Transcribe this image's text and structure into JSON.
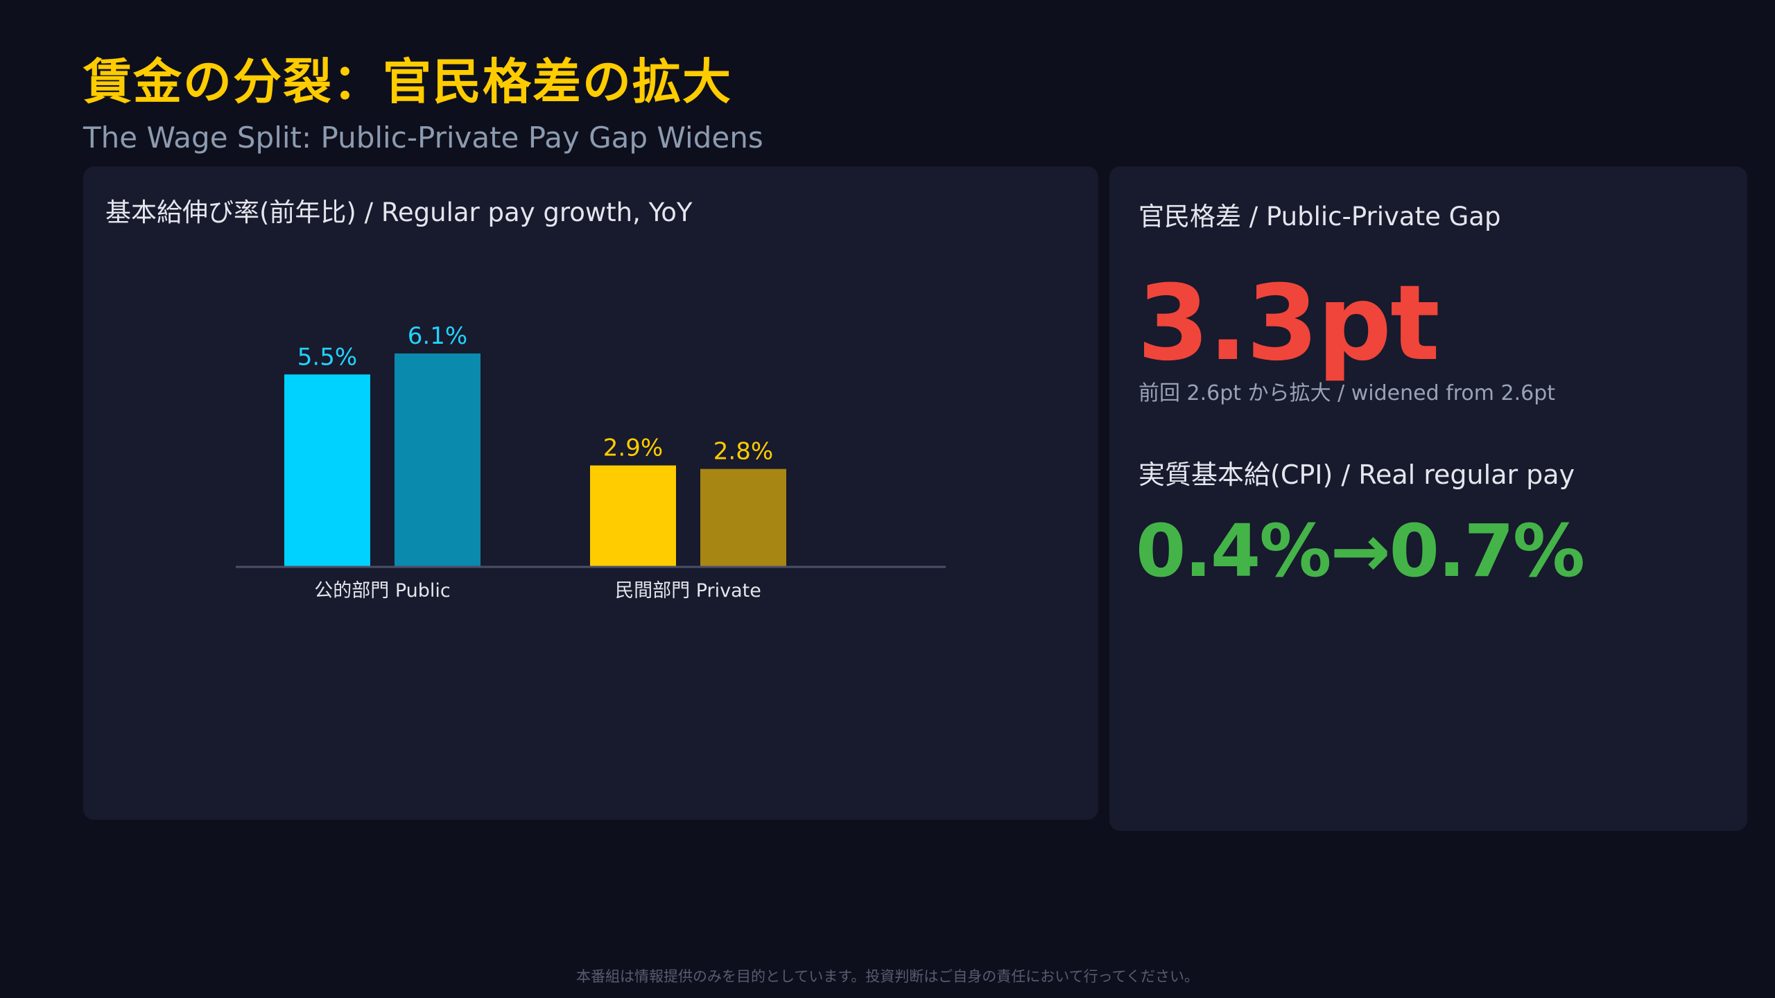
{
  "header": {
    "title": "賃金の分裂：官民格差の拡大",
    "subtitle": "The Wage Split: Public-Private Pay Gap Widens"
  },
  "chart_panel": {
    "title": "基本給伸び率(前年比) / Regular pay growth, YoY"
  },
  "chart_data": {
    "type": "bar",
    "title": "基本給伸び率(前年比) / Regular pay growth, YoY",
    "categories": [
      "公的部門 Public",
      "民間部門 Private"
    ],
    "bars": [
      {
        "category": 0,
        "value": 5.5,
        "label": "5.5%",
        "fill": "#00d2ff",
        "label_color": "#22d3ff"
      },
      {
        "category": 0,
        "value": 6.1,
        "label": "6.1%",
        "fill": "#0a8aac",
        "label_color": "#22d3ff"
      },
      {
        "category": 1,
        "value": 2.9,
        "label": "2.9%",
        "fill": "#ffcc00",
        "label_color": "#ffcc00"
      },
      {
        "category": 1,
        "value": 2.8,
        "label": "2.8%",
        "fill": "#a78614",
        "label_color": "#ffcc00"
      }
    ],
    "ylim": [
      0,
      6.1
    ],
    "grid": false,
    "legend": "none"
  },
  "side_panel": {
    "gap_title": "官民格差 / Public-Private Gap",
    "gap_value": "3.3pt",
    "gap_note": "前回 2.6pt から拡大 / widened from 2.6pt",
    "real_title": "実質基本給(CPI) / Real regular pay",
    "real_value": "0.4%→0.7%"
  },
  "footer": {
    "disclaimer": "本番組は情報提供のみを目的としています。投資判断はご自身の責任において行ってください。"
  },
  "colors": {
    "background": "#0e0f1c",
    "panel": "#181a2d",
    "title": "#ffcc00",
    "gap": "#f0453a",
    "real": "#44b449",
    "axis": "#4b4f66"
  }
}
